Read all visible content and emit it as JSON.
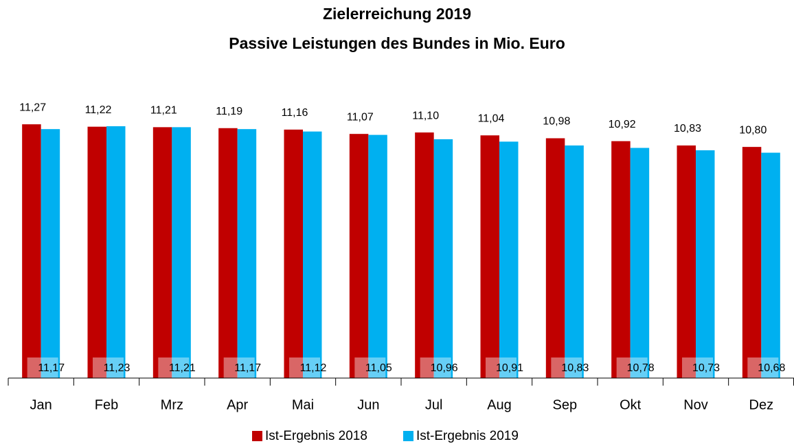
{
  "chart_data": {
    "type": "bar",
    "title": "Zielerreichung 2019",
    "subtitle": "Passive Leistungen des Bundes in Mio. Euro",
    "categories": [
      "Jan",
      "Feb",
      "Mrz",
      "Apr",
      "Mai",
      "Jun",
      "Jul",
      "Aug",
      "Sep",
      "Okt",
      "Nov",
      "Dez"
    ],
    "series": [
      {
        "name": "Ist-Ergebnis 2018",
        "color": "#c00000",
        "values": [
          11.27,
          11.22,
          11.21,
          11.19,
          11.16,
          11.07,
          11.1,
          11.04,
          10.98,
          10.92,
          10.83,
          10.8
        ],
        "value_labels": [
          "11,27",
          "11,22",
          "11,21",
          "11,19",
          "11,16",
          "11,07",
          "11,10",
          "11,04",
          "10,98",
          "10,92",
          "10,83",
          "10,80"
        ]
      },
      {
        "name": "Ist-Ergebnis 2019",
        "color": "#00b0f0",
        "values": [
          11.17,
          11.23,
          11.21,
          11.17,
          11.12,
          11.05,
          10.96,
          10.91,
          10.83,
          10.78,
          10.73,
          10.68
        ],
        "value_labels": [
          "11,17",
          "11,23",
          "11,21",
          "11,17",
          "11,12",
          "11,05",
          "10,96",
          "10,91",
          "10,83",
          "10,78",
          "10,73",
          "10,68"
        ]
      }
    ],
    "ylim": [
      6,
      11.5
    ]
  }
}
